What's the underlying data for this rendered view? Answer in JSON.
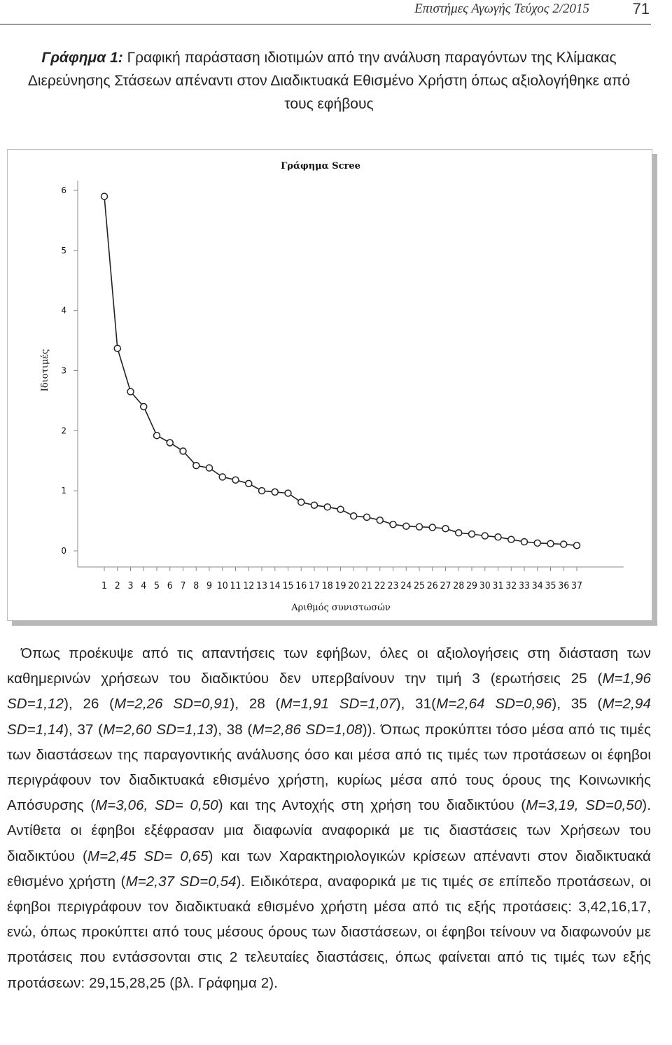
{
  "header": {
    "journal": "Επιστήμες Αγωγής Τεύχος 2/2015",
    "page_number": "71"
  },
  "figure": {
    "label": "Γράφημα 1:",
    "caption": "Γραφική παράσταση ιδιοτιμών από την ανάλυση παραγόντων της Κλίμακας Διερεύνησης Στάσεων απέναντι στον Διαδικτυακά Εθισμένο Χρήστη όπως αξιολογήθηκε από τους εφήβους"
  },
  "chart_data": {
    "type": "line",
    "title": "Γράφημα Scree",
    "xlabel": "Αριθμός συνιστωσών",
    "ylabel": "Ιδιοτιμές",
    "x": [
      1,
      2,
      3,
      4,
      5,
      6,
      7,
      8,
      9,
      10,
      11,
      12,
      13,
      14,
      15,
      16,
      17,
      18,
      19,
      20,
      21,
      22,
      23,
      24,
      25,
      26,
      27,
      28,
      29,
      30,
      31,
      32,
      33,
      34,
      35,
      36,
      37
    ],
    "x_tick_labels": [
      "1",
      "2",
      "3",
      "4",
      "5",
      "6",
      "7",
      "8",
      "9",
      "10",
      "11",
      "12",
      "13",
      "14",
      "15",
      "16",
      "17",
      "18",
      "19",
      "20",
      "21",
      "22",
      "23",
      "24",
      "25",
      "26",
      "27",
      "28",
      "29",
      "30",
      "31",
      "32",
      "33",
      "34",
      "35",
      "36",
      "37"
    ],
    "y": [
      5.9,
      3.37,
      2.65,
      2.4,
      1.92,
      1.8,
      1.66,
      1.42,
      1.38,
      1.23,
      1.18,
      1.12,
      1.0,
      0.98,
      0.96,
      0.81,
      0.76,
      0.73,
      0.69,
      0.58,
      0.56,
      0.51,
      0.44,
      0.41,
      0.4,
      0.39,
      0.37,
      0.3,
      0.28,
      0.25,
      0.23,
      0.19,
      0.15,
      0.13,
      0.12,
      0.11,
      0.09
    ],
    "y_ticks": [
      "0",
      "1",
      "2",
      "3",
      "4",
      "5",
      "6"
    ],
    "ylim": [
      0,
      6
    ],
    "xlim": [
      1,
      37
    ],
    "grid": false,
    "marker": "open-circle",
    "line_color": "#222222"
  },
  "body": {
    "p1_a": "Όπως προέκυψε από τις απαντήσεις των εφήβων, όλες οι αξιολογήσεις στη διάσταση των καθημερινών χρήσεων του διαδικτύου δεν υπερβαίνουν την τιμή 3 (ερωτήσεις 25 (",
    "p1_b": "M=1,96 SD=1,12",
    "p1_c": "), 26 (",
    "p1_d": "M=2,26 SD=0,91",
    "p1_e": "), 28 (",
    "p1_f": "M=1,91 SD=1,07",
    "p1_g": "), 31(",
    "p1_h": "M=2,64 SD=0,96",
    "p1_i": "), 35 (",
    "p1_j": "M=2,94 SD=1,14",
    "p1_k": "), 37 (",
    "p1_l": "M=2,60 SD=1,13",
    "p1_m": "), 38 (",
    "p1_n": "M=2,86 SD=1,08",
    "p1_o": ")). Όπως προκύπτει τόσο μέσα από τις τιμές των διαστάσεων της παραγοντικής ανάλυσης όσο και μέσα από τις τιμές των προτάσεων οι έφηβοι περιγράφουν τον διαδικτυακά εθισμένο χρήστη, κυρίως μέσα από τους όρους της Κοινωνικής Απόσυρσης (",
    "p1_p": "M=3,06, SD= 0,50",
    "p1_q": ") και της Αντοχής στη χρήση του διαδικτύου (",
    "p1_r": "M=3,19, SD=0,50",
    "p1_s": "). Αντίθετα οι έφηβοι εξέφρασαν μια διαφωνία αναφορικά με τις διαστάσεις των Χρήσεων του διαδικτύου (",
    "p1_t": "M=2,45 SD= 0,65",
    "p1_u": ") και των Χαρακτηριολογικών κρίσεων απέναντι στον διαδικτυακά εθισμένο χρήστη (",
    "p1_v": "M=2,37 SD=0,54",
    "p1_w": "). Ειδικότερα, αναφορικά με τις τιμές σε επίπεδο προτάσεων, οι έφηβοι περιγράφουν τον διαδικτυακά εθισμένο χρήστη μέσα από τις εξής προτάσεις: 3,42,16,17, ενώ, όπως προκύπτει από τους μέσους όρους των διαστάσεων, οι έφηβοι τείνουν να διαφωνούν με προτάσεις που εντάσσονται στις 2 τελευταίες διαστάσεις, όπως φαίνεται από τις τιμές των εξής προτάσεων: 29,15,28,25 (βλ. Γράφημα 2)."
  }
}
